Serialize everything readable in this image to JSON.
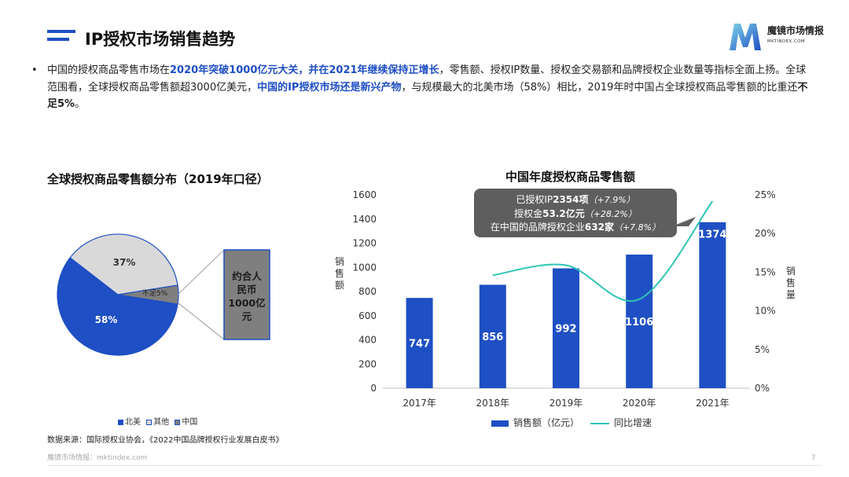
{
  "header": {
    "title": "IP授权市场销售趋势",
    "brand": "魔镜市场情报",
    "brand_sub": "MKTINDEX.COM"
  },
  "intro": {
    "bullet": "•",
    "p1": "中国的授权商品零售市场在",
    "p2": "2020年突破1000亿元大关，并在2021年继续保持正增长",
    "p3": "，零售额、授权IP数量、授权金交易额和品牌授权企业数量等指标全面上扬。全球范围看，全球授权商品零售额超3000亿美元，",
    "p4": "中国的IP授权市场还是新兴产物",
    "p5": "，与规模最大的北美市场（58%）相比，2019年时中国占全球授权商品零售额的比重还",
    "p6": "不足5%",
    "p7": "。"
  },
  "left_chart": {
    "title": "全球授权商品零售额分布（2019年口径）",
    "callout_text": "约合人民币1000亿元"
  },
  "right_chart": {
    "title": "中国年度授权商品零售额",
    "callout": {
      "l1a": "已授权IP",
      "l1b": "2354项",
      "l1c": "（+7.9%）",
      "l2a": "授权金",
      "l2b": "53.2亿元",
      "l2c": "（+28.2%）",
      "l3a": "在中国的品牌授权企业",
      "l3b": "632家",
      "l3c": "（+7.8%）"
    }
  },
  "legend": {
    "bar_label": "销售额（亿元）",
    "line_label": "同比增速"
  },
  "source": "数据来源：国际授权业协会，《2022中国品牌授权行业发展白皮书》",
  "footer": "魔镜市场情报：mktindex.com",
  "page_number": "7",
  "colors": {
    "accent": "#1f4fc4",
    "line": "#2ec4b6",
    "gray": "#d9d9d9",
    "dark_gray": "#7f7f7f",
    "callout": "#5e5e5e"
  },
  "chart_data": [
    {
      "type": "pie",
      "title": "全球授权商品零售额分布（2019年口径）",
      "labels": [
        "北美",
        "其他",
        "中国"
      ],
      "values": [
        58,
        37,
        5
      ],
      "data_labels": [
        "58%",
        "37%",
        "不足5%"
      ],
      "colors": [
        "#1f4fc4",
        "#d9d9d9",
        "#7f7f7f"
      ],
      "legend": "bottom"
    },
    {
      "type": "bar",
      "title": "中国年度授权商品零售额",
      "categories": [
        "2017年",
        "2018年",
        "2019年",
        "2020年",
        "2021年"
      ],
      "series": [
        {
          "name": "销售额（亿元）",
          "values": [
            747,
            856,
            992,
            1106,
            1374
          ]
        },
        {
          "name": "同比增速",
          "type": "line",
          "axis": "right",
          "values": [
            null,
            14.6,
            15.9,
            11.5,
            24.2
          ]
        }
      ],
      "ylabel": "销售额",
      "ylabel_right": "销售量",
      "ylim": [
        0,
        1600
      ],
      "yticks": [
        0,
        200,
        400,
        600,
        800,
        1000,
        1200,
        1400,
        1600
      ],
      "ylim_right": [
        0,
        25
      ],
      "yticks_right": [
        "0%",
        "5%",
        "10%",
        "15%",
        "20%",
        "25%"
      ],
      "grid": false,
      "legend": "bottom"
    }
  ]
}
